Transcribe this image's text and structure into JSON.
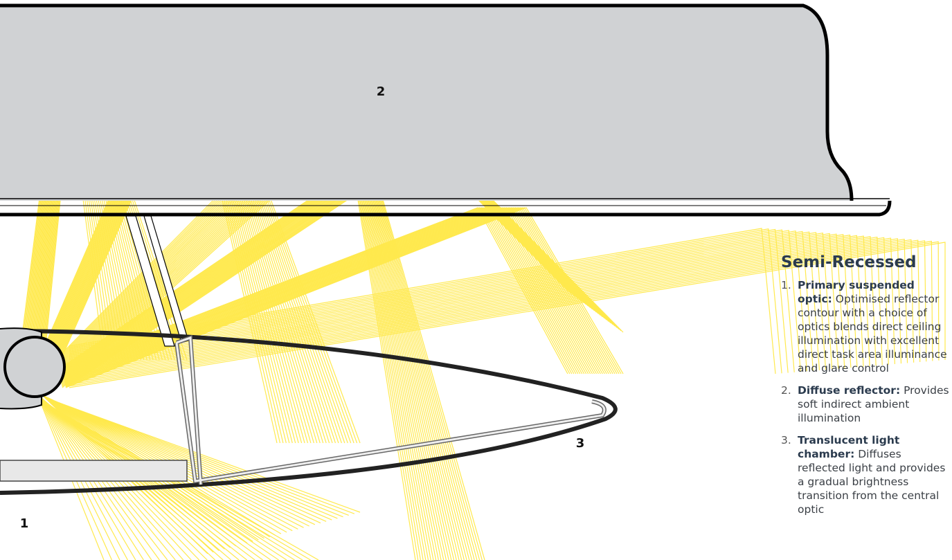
{
  "callouts": [
    {
      "text": "2"
    },
    {
      "text": "3"
    },
    {
      "text": "1"
    }
  ],
  "legend": {
    "title": "Semi-Recessed",
    "items": [
      {
        "number": "1.",
        "term": "Primary suspended optic:",
        "description": "Optimised reflector contour with a choice of optics blends direct ceiling illumination with excellent direct task area illuminance and glare control"
      },
      {
        "number": "2.",
        "term": "Diffuse reflector:",
        "description": "Provides soft indirect ambient illumination"
      },
      {
        "number": "3.",
        "term": "Translucent light chamber:",
        "description": "Diffuses reflected light and provides a gradual brightness transition from the central optic"
      }
    ]
  }
}
